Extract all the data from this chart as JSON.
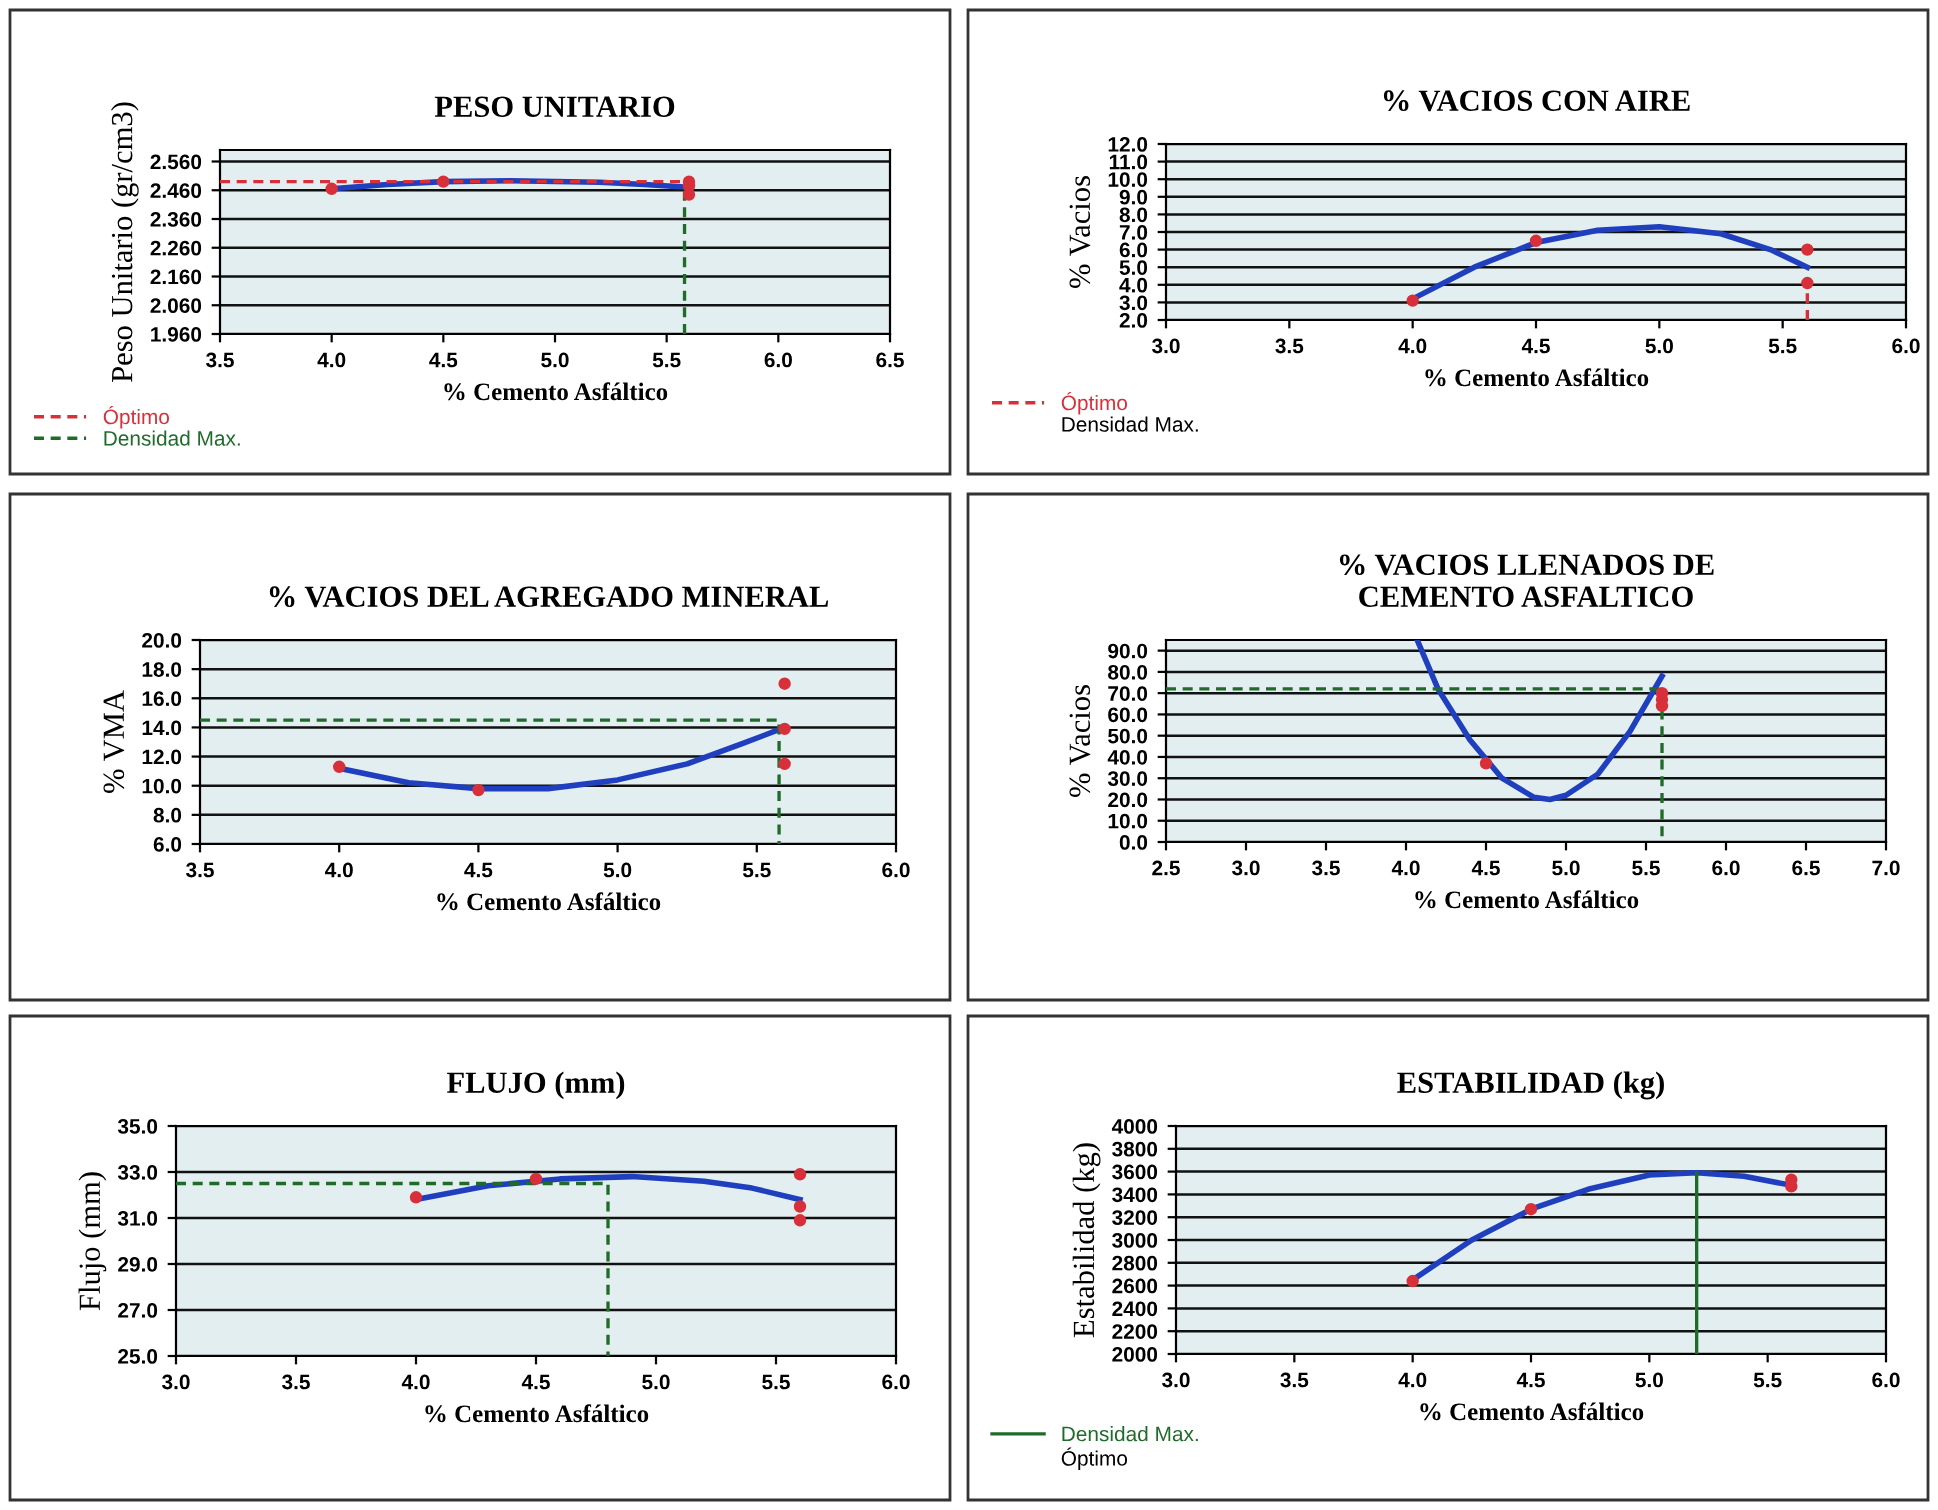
{
  "chart_data": [
    {
      "type": "scatter",
      "title": "PESO UNITARIO",
      "xlabel": "% Cemento Asfáltico",
      "ylabel": "Peso Unitario (gr/cm3)",
      "xlim": [
        3.5,
        6.5
      ],
      "xticks": [
        3.5,
        {
          "value": 4.0,
          "label": "4.0"
        },
        4.5,
        {
          "value": 5.0,
          "label": "5.0"
        },
        5.5,
        {
          "value": 6.0,
          "label": "6.0"
        },
        6.5
      ],
      "ylim": [
        1.96,
        2.6
      ],
      "yticks": [
        {
          "value": 1.96,
          "label": "1.960"
        },
        {
          "value": 2.06,
          "label": "2.060"
        },
        {
          "value": 2.16,
          "label": "2.160"
        },
        {
          "value": 2.26,
          "label": "2.260"
        },
        {
          "value": 2.36,
          "label": "2.360"
        },
        {
          "value": 2.46,
          "label": "2.460"
        },
        {
          "value": 2.56,
          "label": "2.560"
        }
      ],
      "grid": "y",
      "legend": "bottom left",
      "series": [
        {
          "type": "line",
          "color": "#1f3fbf",
          "marker": "none",
          "x": [
            4.0,
            4.25,
            4.5,
            4.8,
            5.2,
            5.4,
            5.6
          ],
          "values": [
            2.465,
            2.48,
            2.49,
            2.493,
            2.488,
            2.48,
            2.47
          ]
        },
        {
          "color": "#d8303a",
          "marker": "circle",
          "x": [
            4.0,
            4.5,
            5.6,
            5.6,
            5.6
          ],
          "values": [
            2.465,
            2.49,
            2.49,
            2.475,
            2.445
          ]
        },
        {
          "type": "line",
          "name": "Óptimo",
          "color": "#d8303a",
          "line_style": "dashed",
          "x": [
            3.5,
            5.6
          ],
          "values": [
            2.49,
            2.49
          ]
        },
        {
          "type": "line",
          "name": "Densidad Max.",
          "color": "#1f6b2a",
          "line_style": "dashed",
          "x": [
            5.58,
            5.58
          ],
          "values": [
            1.96,
            2.47
          ]
        }
      ]
    },
    {
      "type": "scatter",
      "title": "% VACIOS CON AIRE",
      "xlabel": "% Cemento Asfáltico",
      "ylabel": "% Vacios",
      "xlim": [
        3.0,
        6.0
      ],
      "xticks": [
        {
          "value": 3.0,
          "label": "3.0"
        },
        3.5,
        {
          "value": 4.0,
          "label": "4.0"
        },
        4.5,
        {
          "value": 5.0,
          "label": "5.0"
        },
        5.5,
        {
          "value": 6.0,
          "label": "6.0"
        }
      ],
      "ylim": [
        2.0,
        12.0
      ],
      "yticks": [
        {
          "value": 2,
          "label": "2.0"
        },
        {
          "value": 3,
          "label": "3.0"
        },
        {
          "value": 4,
          "label": "4.0"
        },
        {
          "value": 5,
          "label": "5.0"
        },
        {
          "value": 6,
          "label": "6.0"
        },
        {
          "value": 7,
          "label": "7.0"
        },
        {
          "value": 8,
          "label": "8.0"
        },
        {
          "value": 9,
          "label": "9.0"
        },
        {
          "value": 10,
          "label": "10.0"
        },
        {
          "value": 11,
          "label": "11.0"
        },
        {
          "value": 12,
          "label": "12.0"
        }
      ],
      "grid": "y",
      "legend": "bottom left",
      "annotations": [
        "Densidad Max."
      ],
      "series": [
        {
          "type": "line",
          "color": "#1f3fbf",
          "marker": "none",
          "x": [
            4.0,
            4.25,
            4.5,
            4.75,
            5.0,
            5.25,
            5.45,
            5.6
          ],
          "values": [
            3.2,
            5.0,
            6.4,
            7.1,
            7.3,
            6.9,
            6.0,
            5.0
          ]
        },
        {
          "color": "#d8303a",
          "marker": "circle",
          "x": [
            4.0,
            4.5,
            5.6,
            5.6
          ],
          "values": [
            3.1,
            6.5,
            6.0,
            4.1
          ]
        },
        {
          "type": "line",
          "name": "Óptimo",
          "color": "#d8303a",
          "line_style": "dashed",
          "x": [
            5.6,
            5.6
          ],
          "values": [
            2.0,
            4.1
          ]
        }
      ]
    },
    {
      "type": "scatter",
      "title": "% VACIOS DEL AGREGADO MINERAL",
      "xlabel": "% Cemento Asfáltico",
      "ylabel": "% VMA",
      "xlim": [
        3.5,
        6.0
      ],
      "xticks": [
        3.5,
        {
          "value": 4.0,
          "label": "4.0"
        },
        4.5,
        {
          "value": 5.0,
          "label": "5.0"
        },
        5.5,
        {
          "value": 6.0,
          "label": "6.0"
        }
      ],
      "ylim": [
        6.0,
        20.0
      ],
      "yticks": [
        {
          "value": 6,
          "label": "6.0"
        },
        {
          "value": 8,
          "label": "8.0"
        },
        {
          "value": 10,
          "label": "10.0"
        },
        {
          "value": 12,
          "label": "12.0"
        },
        {
          "value": 14,
          "label": "14.0"
        },
        {
          "value": 16,
          "label": "16.0"
        },
        {
          "value": 18,
          "label": "18.0"
        },
        {
          "value": 20,
          "label": "20.0"
        }
      ],
      "grid": "y",
      "series": [
        {
          "type": "line",
          "color": "#1f3fbf",
          "marker": "none",
          "x": [
            4.0,
            4.25,
            4.5,
            4.75,
            5.0,
            5.25,
            5.45,
            5.6
          ],
          "values": [
            11.2,
            10.2,
            9.8,
            9.8,
            10.4,
            11.5,
            12.9,
            14.0
          ]
        },
        {
          "color": "#d8303a",
          "marker": "circle",
          "x": [
            4.0,
            4.5,
            5.6,
            5.6,
            5.6
          ],
          "values": [
            11.3,
            9.7,
            17.0,
            13.9,
            11.5
          ]
        },
        {
          "type": "line",
          "color": "#1f6b2a",
          "line_style": "dashed",
          "x": [
            3.5,
            5.58,
            5.58
          ],
          "values": [
            14.5,
            14.5,
            6.0
          ]
        }
      ]
    },
    {
      "type": "scatter",
      "title": "% VACIOS LLENADOS DE\nCEMENTO ASFALTICO",
      "xlabel": "% Cemento Asfáltico",
      "ylabel": "% Vacios",
      "xlim": [
        2.5,
        7.0
      ],
      "xticks": [
        2.5,
        {
          "value": 3.0,
          "label": "3.0"
        },
        3.5,
        {
          "value": 4.0,
          "label": "4.0"
        },
        4.5,
        {
          "value": 5.0,
          "label": "5.0"
        },
        5.5,
        {
          "value": 6.0,
          "label": "6.0"
        },
        6.5,
        {
          "value": 7.0,
          "label": "7.0"
        }
      ],
      "ylim": [
        0.0,
        95.0
      ],
      "yticks": [
        {
          "value": 0,
          "label": "0.0"
        },
        {
          "value": 10,
          "label": "10.0"
        },
        {
          "value": 20,
          "label": "20.0"
        },
        {
          "value": 30,
          "label": "30.0"
        },
        {
          "value": 40,
          "label": "40.0"
        },
        {
          "value": 50,
          "label": "50.0"
        },
        {
          "value": 60,
          "label": "60.0"
        },
        {
          "value": 70,
          "label": "70.0"
        },
        {
          "value": 80,
          "label": "80.0"
        },
        {
          "value": 90,
          "label": "90.0"
        }
      ],
      "grid": "y",
      "series": [
        {
          "type": "line",
          "color": "#1f3fbf",
          "marker": "none",
          "x": [
            4.07,
            4.2,
            4.4,
            4.6,
            4.8,
            4.9,
            5.0,
            5.2,
            5.4,
            5.6
          ],
          "values": [
            95,
            72,
            48,
            30,
            21,
            20,
            22,
            32,
            52,
            78
          ]
        },
        {
          "color": "#d8303a",
          "marker": "circle",
          "x": [
            4.5,
            5.6,
            5.6,
            5.6
          ],
          "values": [
            37,
            70,
            67,
            64
          ]
        },
        {
          "type": "line",
          "color": "#1f6b2a",
          "line_style": "dashed",
          "x": [
            2.5,
            5.6,
            5.6
          ],
          "values": [
            72,
            72,
            0
          ]
        }
      ]
    },
    {
      "type": "scatter",
      "title": "FLUJO (mm)",
      "xlabel": "% Cemento Asfáltico",
      "ylabel": "Flujo (mm)",
      "xlim": [
        3.0,
        6.0
      ],
      "xticks": [
        {
          "value": 3.0,
          "label": "3.0"
        },
        3.5,
        {
          "value": 4.0,
          "label": "4.0"
        },
        4.5,
        {
          "value": 5.0,
          "label": "5.0"
        },
        5.5,
        {
          "value": 6.0,
          "label": "6.0"
        }
      ],
      "ylim": [
        25.0,
        35.0
      ],
      "yticks": [
        {
          "value": 25,
          "label": "25.0"
        },
        {
          "value": 27,
          "label": "27.0"
        },
        {
          "value": 29,
          "label": "29.0"
        },
        {
          "value": 31,
          "label": "31.0"
        },
        {
          "value": 33,
          "label": "33.0"
        },
        {
          "value": 35,
          "label": "35.0"
        }
      ],
      "grid": "y",
      "series": [
        {
          "type": "line",
          "color": "#1f3fbf",
          "marker": "none",
          "x": [
            4.0,
            4.3,
            4.6,
            4.9,
            5.2,
            5.4,
            5.6
          ],
          "values": [
            31.8,
            32.4,
            32.7,
            32.8,
            32.6,
            32.3,
            31.8
          ]
        },
        {
          "color": "#d8303a",
          "marker": "circle",
          "x": [
            4.0,
            4.5,
            5.6,
            5.6,
            5.6
          ],
          "values": [
            31.9,
            32.7,
            32.9,
            31.5,
            30.9
          ]
        },
        {
          "type": "line",
          "color": "#1f6b2a",
          "line_style": "dashed",
          "x": [
            3.0,
            4.8,
            4.8
          ],
          "values": [
            32.5,
            32.5,
            25.0
          ]
        }
      ]
    },
    {
      "type": "scatter",
      "title": "ESTABILIDAD (kg)",
      "xlabel": "% Cemento Asfáltico",
      "ylabel": "Estabilidad (kg)",
      "xlim": [
        3.0,
        6.0
      ],
      "xticks": [
        {
          "value": 3.0,
          "label": "3.0"
        },
        3.5,
        {
          "value": 4.0,
          "label": "4.0"
        },
        4.5,
        {
          "value": 5.0,
          "label": "5.0"
        },
        5.5,
        {
          "value": 6.0,
          "label": "6.0"
        }
      ],
      "ylim": [
        2000,
        4000
      ],
      "yticks": [
        2000,
        2200,
        2400,
        2600,
        2800,
        3000,
        3200,
        3400,
        3600,
        3800,
        4000
      ],
      "grid": "y",
      "legend": "bottom left",
      "annotations": [
        "Óptimo"
      ],
      "series": [
        {
          "type": "line",
          "color": "#1f3fbf",
          "marker": "none",
          "x": [
            4.0,
            4.25,
            4.5,
            4.75,
            5.0,
            5.2,
            5.4,
            5.6
          ],
          "values": [
            2650,
            3000,
            3270,
            3450,
            3570,
            3590,
            3560,
            3480
          ]
        },
        {
          "color": "#d8303a",
          "marker": "circle",
          "x": [
            4.0,
            4.5,
            5.6,
            5.6
          ],
          "values": [
            2640,
            3270,
            3530,
            3470
          ]
        },
        {
          "type": "line",
          "name": "Densidad Max.",
          "color": "#1f6b2a",
          "line_style": "solid",
          "x": [
            5.2,
            5.2
          ],
          "values": [
            2000,
            3590
          ]
        }
      ]
    }
  ]
}
